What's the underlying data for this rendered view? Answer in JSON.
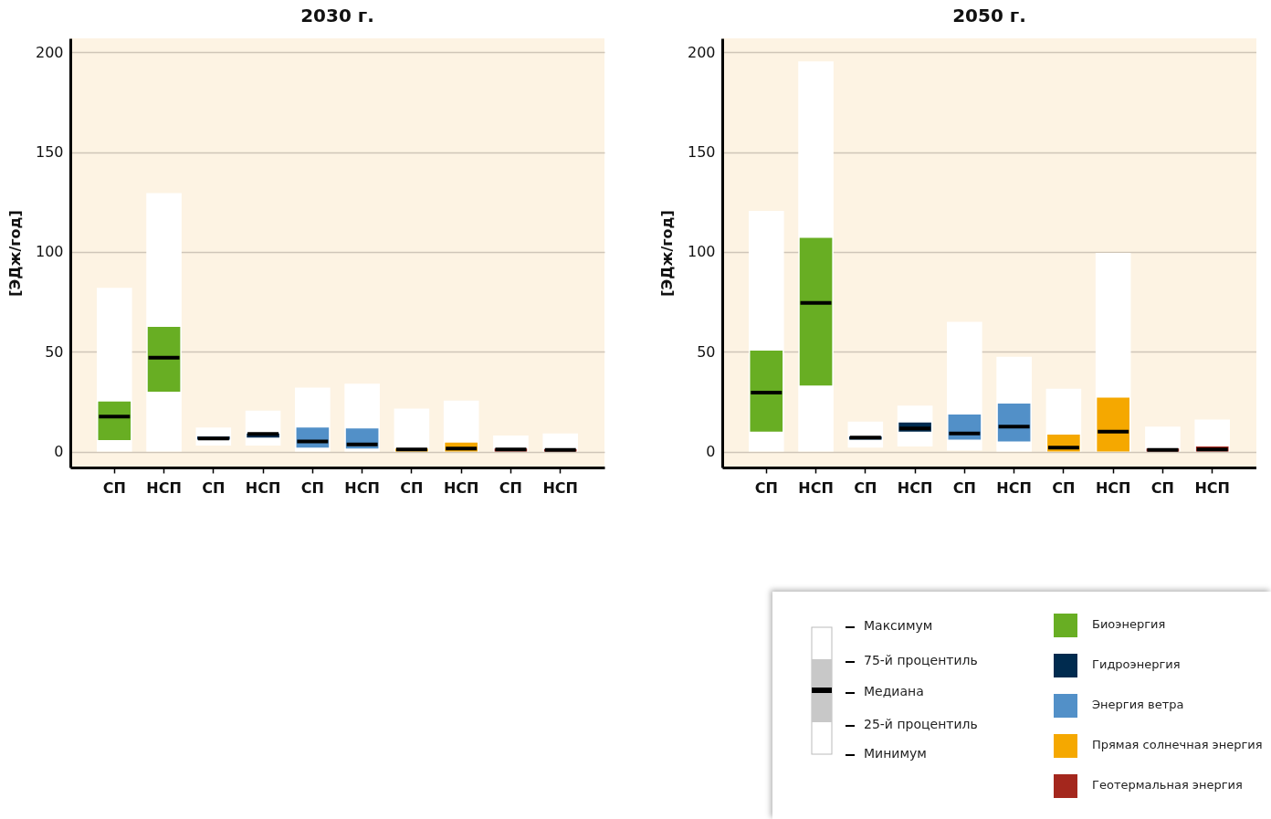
{
  "chart_data": [
    {
      "type": "box",
      "title": "2030 г.",
      "ylabel": "[ЭДж/год]",
      "ylim": [
        -8,
        207
      ],
      "yticks": [
        0,
        50,
        100,
        150,
        200
      ],
      "grid": "y",
      "legend": "bottom right",
      "categories": [
        "СП",
        "НСП",
        "СП",
        "НСП",
        "СП",
        "НСП",
        "СП",
        "НСП",
        "СП",
        "НСП"
      ],
      "series": [
        {
          "name": "Биоэнергия",
          "color": "#68ae23",
          "boxes": [
            {
              "low": 0,
              "q1": 5.7,
              "median": 17.5,
              "q3": 25,
              "high": 82
            },
            {
              "low": 0,
              "q1": 30,
              "median": 47,
              "q3": 62.5,
              "high": 129.5
            },
            null,
            null,
            null,
            null,
            null,
            null,
            null,
            null
          ]
        },
        {
          "name": "Гидроэнергия",
          "color": "#002b4f",
          "boxes": [
            null,
            null,
            {
              "low": 3,
              "q1": 6,
              "median": 6.5,
              "q3": 7.5,
              "high": 12
            },
            {
              "low": 3,
              "q1": 7,
              "median": 8.8,
              "q3": 9,
              "high": 20.5
            },
            null,
            null,
            null,
            null,
            null,
            null
          ]
        },
        {
          "name": "Энергия ветра",
          "color": "#5290c8",
          "boxes": [
            null,
            null,
            null,
            null,
            {
              "low": 0,
              "q1": 2,
              "median": 5,
              "q3": 12,
              "high": 32
            },
            {
              "low": 0,
              "q1": 1.5,
              "median": 3.5,
              "q3": 11.5,
              "high": 34
            },
            null,
            null,
            null,
            null
          ]
        },
        {
          "name": "Прямая солнечная энергия",
          "color": "#f5a800",
          "boxes": [
            null,
            null,
            null,
            null,
            null,
            null,
            {
              "low": 0,
              "q1": 0,
              "median": 1,
              "q3": 1.5,
              "high": 21.5
            },
            {
              "low": 0,
              "q1": 0,
              "median": 1.5,
              "q3": 4.5,
              "high": 25.5
            },
            null,
            null
          ]
        },
        {
          "name": "Геотермальная энергия",
          "color": "#a4271d",
          "boxes": [
            null,
            null,
            null,
            null,
            null,
            null,
            null,
            null,
            {
              "low": 0,
              "q1": 0,
              "median": 1,
              "q3": 1.5,
              "high": 8
            },
            {
              "low": 0,
              "q1": 0,
              "median": 0.8,
              "q3": 1.2,
              "high": 9
            }
          ]
        }
      ]
    },
    {
      "type": "box",
      "title": "2050 г.",
      "ylabel": "[ЭДж/год]",
      "ylim": [
        -8,
        207
      ],
      "yticks": [
        0,
        50,
        100,
        150,
        200
      ],
      "grid": "y",
      "legend": "bottom right",
      "categories": [
        "СП",
        "НСП",
        "СП",
        "НСП",
        "СП",
        "НСП",
        "СП",
        "НСП",
        "СП",
        "НСП"
      ],
      "annotations": [
        "Максимум",
        "75-й процентиль",
        "Медиана",
        "25-й процентиль",
        "Минимум"
      ],
      "series": [
        {
          "name": "Биоэнергия",
          "color": "#68ae23",
          "boxes": [
            {
              "low": 0,
              "q1": 10,
              "median": 29.5,
              "q3": 50.5,
              "high": 120.5
            },
            {
              "low": 0,
              "q1": 33,
              "median": 74.5,
              "q3": 107,
              "high": 195.5
            },
            null,
            null,
            null,
            null,
            null,
            null,
            null,
            null
          ]
        },
        {
          "name": "Гидроэнергия",
          "color": "#002b4f",
          "boxes": [
            null,
            null,
            {
              "low": 2,
              "q1": 6,
              "median": 7,
              "q3": 7.5,
              "high": 15
            },
            {
              "low": 2.5,
              "q1": 10,
              "median": 11.5,
              "q3": 14.5,
              "high": 23
            },
            null,
            null,
            null,
            null,
            null,
            null
          ]
        },
        {
          "name": "Энергия ветра",
          "color": "#5290c8",
          "boxes": [
            null,
            null,
            null,
            null,
            {
              "low": 0.5,
              "q1": 6,
              "median": 9,
              "q3": 18.5,
              "high": 65
            },
            {
              "low": 0,
              "q1": 5,
              "median": 12.5,
              "q3": 24,
              "high": 47.5
            },
            null,
            null,
            null,
            null
          ]
        },
        {
          "name": "Прямая солнечная энергия",
          "color": "#f5a800",
          "boxes": [
            null,
            null,
            null,
            null,
            null,
            null,
            {
              "low": 0,
              "q1": 0,
              "median": 2,
              "q3": 8.5,
              "high": 31.5
            },
            {
              "low": 0,
              "q1": 0,
              "median": 10,
              "q3": 27,
              "high": 99.5
            },
            null,
            null
          ]
        },
        {
          "name": "Геотермальная энергия",
          "color": "#a4271d",
          "boxes": [
            null,
            null,
            null,
            null,
            null,
            null,
            null,
            null,
            {
              "low": 0,
              "q1": 0,
              "median": 0.8,
              "q3": 1.5,
              "high": 12.5
            },
            {
              "low": 0,
              "q1": 0,
              "median": 1,
              "q3": 2.5,
              "high": 16
            }
          ]
        }
      ]
    }
  ]
}
